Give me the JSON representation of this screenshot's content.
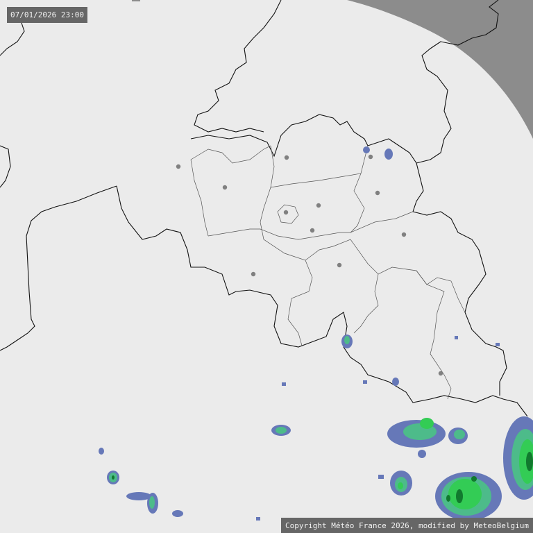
{
  "timestamp": "07/01/2026 23:00",
  "copyright": "Copyright Météo France 2026, modified by MeteoBelgium",
  "colors": {
    "background": "#ebebeb",
    "out_of_range": "#8c8c8c",
    "border": "#111111",
    "province_border": "#555555",
    "city_dot": "#808080",
    "precip_light": "#6678b8",
    "precip_moderate": "#4dbb8a",
    "precip_strong": "#33cc55",
    "precip_heavy": "#117a2e"
  }
}
